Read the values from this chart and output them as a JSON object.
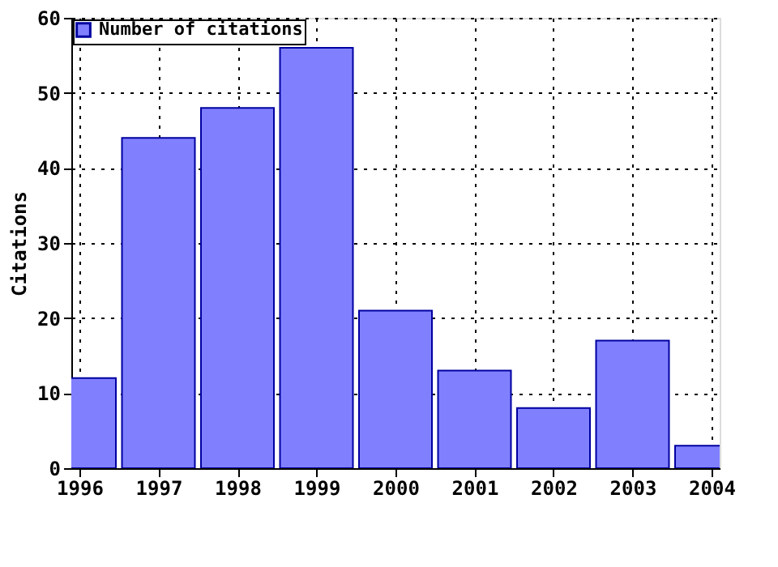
{
  "chart_data": {
    "type": "bar",
    "ylabel": "Citations",
    "x": [
      1996,
      1997,
      1998,
      1999,
      2000,
      2001,
      2002,
      2003,
      2004
    ],
    "series": [
      {
        "name": "Number of citations",
        "color": "#8080ff",
        "values": [
          12,
          44,
          48,
          56,
          21,
          13,
          8,
          17,
          3
        ]
      }
    ],
    "xlim": [
      1996,
      2004
    ],
    "xticks": [
      1996,
      1997,
      1998,
      1999,
      2000,
      2001,
      2002,
      2003,
      2004
    ],
    "ylim": [
      0,
      60
    ],
    "yticks": [
      0,
      10,
      20,
      30,
      40,
      50,
      60
    ],
    "grid": true,
    "legend": "top left"
  }
}
